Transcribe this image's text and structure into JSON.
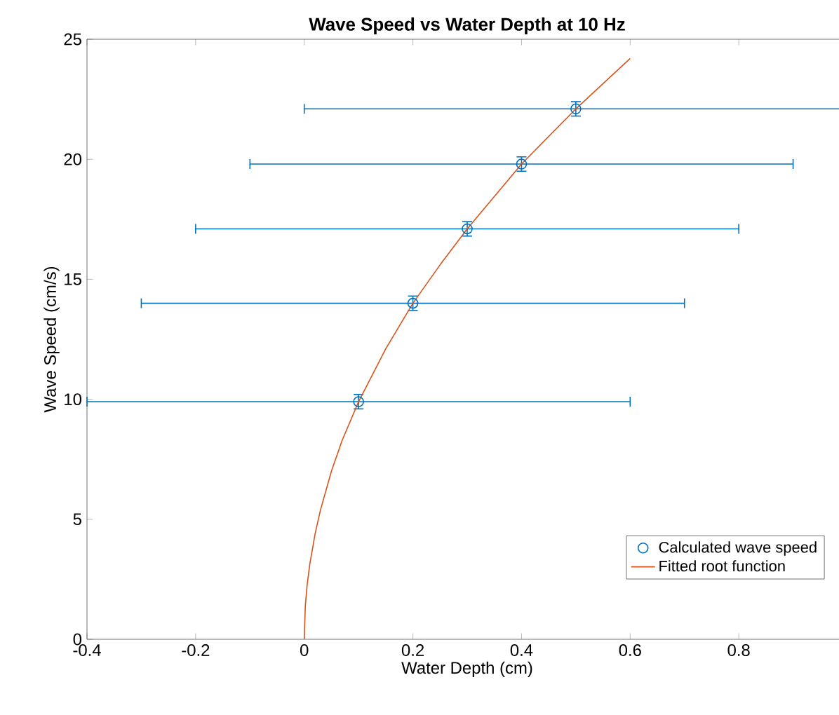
{
  "chart_data": {
    "type": "scatter",
    "title": "Wave Speed vs Water Depth at 10 Hz",
    "xlabel": "Water Depth (cm)",
    "ylabel": "Wave Speed (cm/s)",
    "xlim": [
      -0.4,
      1.0
    ],
    "ylim": [
      0,
      25
    ],
    "xticks": [
      -0.4,
      -0.2,
      0,
      0.2,
      0.4,
      0.6,
      0.8
    ],
    "yticks": [
      0,
      5,
      10,
      15,
      20,
      25
    ],
    "legend": "bottom right",
    "grid": false,
    "series": [
      {
        "name": "Calculated wave speed",
        "color": "#0072bd",
        "marker": "circle",
        "x": [
          0.1,
          0.2,
          0.3,
          0.4,
          0.5
        ],
        "values": [
          9.9,
          14.0,
          17.1,
          19.8,
          22.1
        ],
        "errors": [
          0.3,
          0.3,
          0.3,
          0.3,
          0.3
        ],
        "xerrors": [
          0.5,
          0.5,
          0.5,
          0.5,
          0.5
        ]
      },
      {
        "name": "Fitted root function",
        "type": "line",
        "color": "#d95319",
        "marker": "none",
        "line_style": "solid",
        "x": [
          0,
          0.002,
          0.005,
          0.01,
          0.02,
          0.03,
          0.05,
          0.07,
          0.1,
          0.15,
          0.2,
          0.25,
          0.3,
          0.4,
          0.5,
          0.6
        ],
        "values": [
          0,
          1.4,
          2.2,
          3.1,
          4.4,
          5.4,
          7.0,
          8.3,
          9.9,
          12.1,
          14.0,
          15.6,
          17.1,
          19.8,
          22.1,
          24.2
        ]
      }
    ]
  }
}
